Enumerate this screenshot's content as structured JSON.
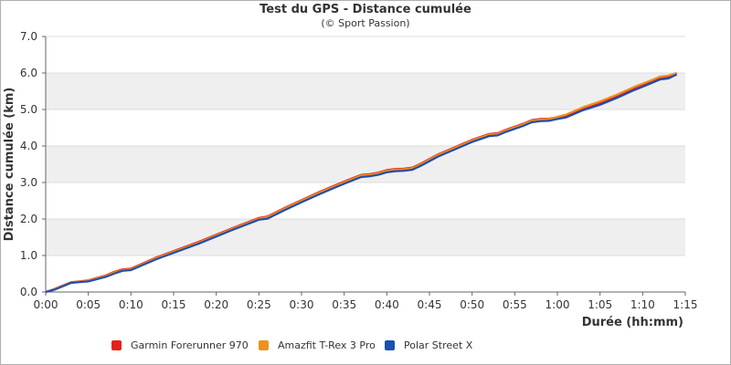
{
  "chart_data": {
    "type": "line",
    "title": "Test du GPS - Distance cumulée",
    "subtitle": "(© Sport Passion)",
    "xlabel": "Durée (hh:mm)",
    "ylabel": "Distance cumulée (km)",
    "x_unit": "minutes",
    "xlim": [
      0,
      75
    ],
    "ylim": [
      0,
      7
    ],
    "x_ticks": [
      "0:00",
      "0:05",
      "0:10",
      "0:15",
      "0:20",
      "0:25",
      "0:30",
      "0:35",
      "0:40",
      "0:45",
      "0:50",
      "0:55",
      "1:00",
      "1:05",
      "1:10",
      "1:15"
    ],
    "y_ticks": [
      "0.0",
      "1.0",
      "2.0",
      "3.0",
      "4.0",
      "5.0",
      "6.0",
      "7.0"
    ],
    "grid": "horizontal alternating bands",
    "legend_position": "bottom-left",
    "series": [
      {
        "name": "Garmin Forerunner 970",
        "color": "#e8201c",
        "x": [
          0,
          1,
          3,
          4,
          5,
          7,
          8,
          9,
          10,
          13,
          18,
          22,
          25,
          26,
          28,
          30,
          32,
          34,
          36,
          37,
          38,
          39,
          40,
          41,
          42,
          43,
          44,
          46,
          48,
          50,
          52,
          53,
          54,
          56,
          57,
          58,
          59,
          60,
          61,
          63,
          65,
          67,
          69,
          71,
          72,
          73,
          74
        ],
        "y": [
          0,
          0.08,
          0.27,
          0.29,
          0.32,
          0.45,
          0.55,
          0.62,
          0.64,
          0.95,
          1.38,
          1.76,
          2.03,
          2.07,
          2.3,
          2.52,
          2.73,
          2.93,
          3.12,
          3.21,
          3.23,
          3.27,
          3.34,
          3.37,
          3.38,
          3.41,
          3.52,
          3.77,
          3.97,
          4.17,
          4.33,
          4.35,
          4.45,
          4.61,
          4.71,
          4.74,
          4.75,
          4.79,
          4.83,
          5.03,
          5.18,
          5.37,
          5.58,
          5.77,
          5.87,
          5.9,
          6.0
        ]
      },
      {
        "name": "Amazfit T-Rex 3 Pro",
        "color": "#f0901c",
        "x": [
          0,
          1,
          3,
          4,
          5,
          7,
          8,
          9,
          10,
          13,
          18,
          22,
          25,
          26,
          28,
          30,
          32,
          34,
          36,
          37,
          38,
          39,
          40,
          41,
          42,
          43,
          44,
          46,
          48,
          50,
          52,
          53,
          54,
          56,
          57,
          58,
          59,
          60,
          61,
          63,
          65,
          67,
          69,
          71,
          72,
          73,
          74
        ],
        "y": [
          0,
          0.07,
          0.26,
          0.28,
          0.31,
          0.43,
          0.53,
          0.6,
          0.62,
          0.93,
          1.36,
          1.74,
          2.01,
          2.05,
          2.28,
          2.5,
          2.71,
          2.91,
          3.1,
          3.19,
          3.21,
          3.25,
          3.32,
          3.35,
          3.36,
          3.39,
          3.5,
          3.75,
          3.95,
          4.15,
          4.31,
          4.33,
          4.43,
          4.59,
          4.69,
          4.72,
          4.74,
          4.8,
          4.86,
          5.06,
          5.22,
          5.41,
          5.62,
          5.8,
          5.9,
          5.93,
          6.0
        ]
      },
      {
        "name": "Polar Street X",
        "color": "#1c4fb0",
        "x": [
          0,
          1,
          3,
          4,
          5,
          7,
          8,
          9,
          10,
          13,
          18,
          22,
          25,
          26,
          28,
          30,
          32,
          34,
          36,
          37,
          38,
          39,
          40,
          41,
          42,
          43,
          44,
          46,
          48,
          50,
          52,
          53,
          54,
          56,
          57,
          58,
          59,
          60,
          61,
          63,
          65,
          67,
          69,
          71,
          72,
          73,
          74
        ],
        "y": [
          0,
          0.06,
          0.25,
          0.27,
          0.29,
          0.41,
          0.5,
          0.58,
          0.6,
          0.9,
          1.33,
          1.71,
          1.98,
          2.01,
          2.24,
          2.46,
          2.67,
          2.87,
          3.06,
          3.15,
          3.17,
          3.21,
          3.28,
          3.31,
          3.32,
          3.35,
          3.46,
          3.71,
          3.91,
          4.11,
          4.27,
          4.29,
          4.39,
          4.55,
          4.65,
          4.68,
          4.69,
          4.74,
          4.78,
          4.98,
          5.13,
          5.32,
          5.53,
          5.72,
          5.82,
          5.85,
          5.96
        ]
      }
    ]
  }
}
